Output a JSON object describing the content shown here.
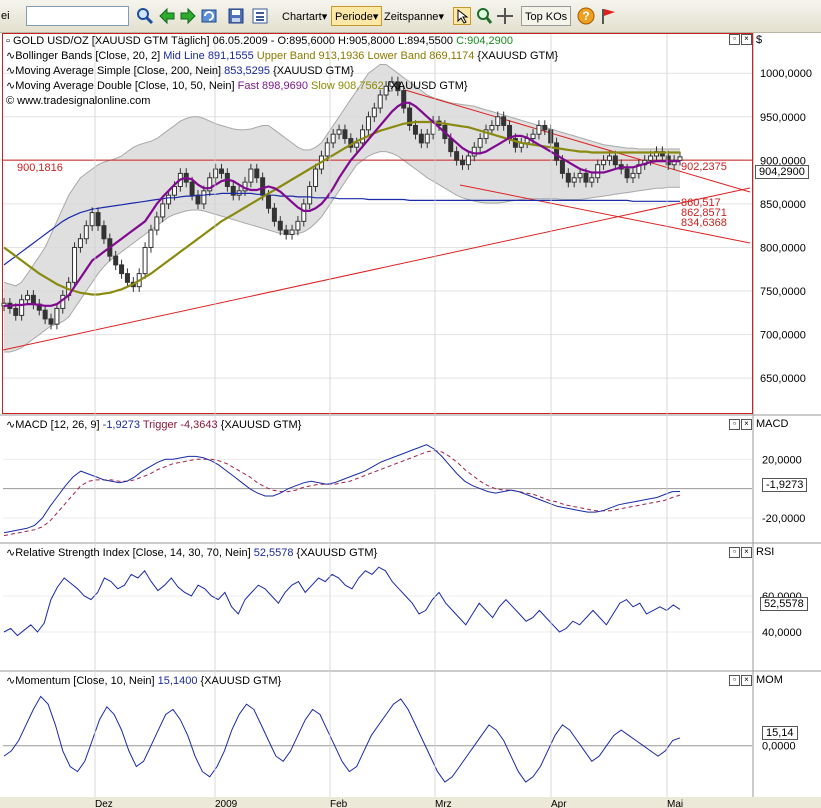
{
  "toolbar": {
    "edge_text": "ei",
    "search_value": "",
    "chartart": "Chartart",
    "periode": "Periode",
    "zeitspanne": "Zeitspanne",
    "top_kos": "Top KOs"
  },
  "main": {
    "currency_label": "$",
    "legend": {
      "title_line": "GOLD USD/OZ [XAUUSD GTM  Täglich] 06.05.2009 - O:895,6000 H:905,8000 L:894,5500",
      "close_value": "C:904,2900",
      "bb_label": "Bollinger Bands [Close, 20, 2]",
      "bb_mid": "Mid Line 891,1555",
      "bb_upper": "Upper Band 913,1936",
      "bb_lower": "Lower Band 869,1174",
      "bb_src": "{XAUUSD GTM}",
      "sma_label": "Moving Average Simple [Close, 200, Nein]",
      "sma_value": "853,5295",
      "sma_src": "{XAUUSD GTM}",
      "mad_label": "Moving Average Double [Close, 10, 50, Nein]",
      "mad_fast": "Fast 898,9690",
      "mad_slow": "Slow 908,7562",
      "mad_src": "{XAUUSD GTM}",
      "copyright": "© www.tradesignalonline.com"
    },
    "hline_label": "900,1816",
    "price_tag": "904,2900",
    "annotations": [
      "902,2375",
      "860,517",
      "862,8571",
      "834,6368"
    ]
  },
  "macd": {
    "axis_title": "MACD",
    "legend_label": "MACD [12, 26, 9]",
    "value": "-1,9273",
    "trigger": "Trigger -4,3643",
    "src": "{XAUUSD GTM}",
    "tag": "-1,9273"
  },
  "rsi": {
    "axis_title": "RSI",
    "legend_label": "Relative Strength Index [Close, 14, 30, 70, Nein]",
    "value": "52,5578",
    "src": "{XAUUSD GTM}",
    "tag": "52,5578"
  },
  "mom": {
    "axis_title": "MOM",
    "legend_label": "Momentum [Close, 10, Nein]",
    "value": "15,1400",
    "src": "{XAUUSD GTM}",
    "tag": "15,14"
  },
  "chart_data": [
    {
      "type": "line",
      "panel": "price",
      "y_ticks": [
        1000,
        950,
        900,
        850,
        800,
        750,
        700,
        650
      ],
      "y_tick_labels": [
        "1000,0000",
        "950,0000",
        "900,0000",
        "850,0000",
        "800,0000",
        "750,0000",
        "700,0000",
        "650,0000"
      ],
      "ylim": [
        610,
        1045
      ],
      "x_ticks": [
        "Dez",
        "2009",
        "Feb",
        "Mrz",
        "Apr",
        "Mai"
      ],
      "close": [
        736,
        730,
        722,
        740,
        745,
        735,
        728,
        718,
        712,
        730,
        745,
        760,
        800,
        810,
        825,
        840,
        825,
        810,
        790,
        780,
        770,
        760,
        755,
        770,
        800,
        820,
        835,
        850,
        860,
        870,
        885,
        875,
        860,
        850,
        865,
        880,
        890,
        885,
        870,
        860,
        865,
        875,
        890,
        880,
        860,
        845,
        830,
        820,
        815,
        820,
        830,
        850,
        870,
        890,
        905,
        920,
        930,
        935,
        925,
        915,
        920,
        935,
        950,
        960,
        975,
        985,
        990,
        980,
        960,
        940,
        930,
        920,
        930,
        945,
        940,
        925,
        910,
        900,
        895,
        905,
        915,
        925,
        935,
        940,
        950,
        940,
        925,
        915,
        920,
        925,
        930,
        940,
        935,
        920,
        900,
        885,
        875,
        880,
        885,
        875,
        880,
        895,
        900,
        905,
        895,
        890,
        880,
        885,
        895,
        900,
        905,
        910,
        905,
        895,
        900,
        904
      ],
      "sma200": [
        780,
        785,
        790,
        795,
        800,
        805,
        810,
        815,
        820,
        825,
        830,
        834,
        837,
        840,
        842,
        844,
        845,
        846,
        847,
        848,
        849,
        850,
        851,
        852,
        853,
        854,
        855,
        856,
        857,
        857,
        858,
        859,
        859,
        860,
        860,
        861,
        861,
        862,
        862,
        862,
        862,
        862,
        862,
        861,
        861,
        860,
        860,
        859,
        859,
        859,
        858,
        858,
        858,
        857,
        857,
        857,
        857,
        856,
        856,
        856,
        856,
        856,
        855,
        855,
        855,
        855,
        855,
        855,
        855,
        854,
        854,
        854,
        854,
        854,
        854,
        854,
        854,
        854,
        854,
        854,
        854,
        854,
        854,
        854,
        854,
        854,
        854,
        854,
        854,
        854,
        854,
        854,
        854,
        854,
        854,
        854,
        854,
        854,
        854,
        854,
        854,
        854,
        854,
        854,
        854,
        854,
        854,
        853,
        853,
        853,
        853,
        853,
        853,
        853,
        853,
        853
      ],
      "fast_ma": [
        733,
        733,
        734,
        734,
        735,
        735,
        734,
        733,
        733,
        735,
        740,
        745,
        755,
        765,
        775,
        785,
        790,
        795,
        800,
        805,
        810,
        815,
        820,
        825,
        830,
        840,
        850,
        858,
        865,
        872,
        878,
        880,
        878,
        872,
        868,
        868,
        872,
        876,
        878,
        876,
        872,
        868,
        866,
        866,
        868,
        870,
        868,
        864,
        858,
        852,
        846,
        842,
        842,
        845,
        850,
        858,
        868,
        880,
        890,
        900,
        908,
        916,
        924,
        932,
        940,
        948,
        956,
        962,
        966,
        966,
        962,
        956,
        950,
        944,
        938,
        932,
        926,
        920,
        914,
        910,
        908,
        908,
        910,
        914,
        918,
        922,
        926,
        928,
        928,
        926,
        922,
        918,
        914,
        910,
        906,
        902,
        898,
        894,
        890,
        888,
        886,
        886,
        886,
        888,
        890,
        892,
        892,
        892,
        894,
        896,
        898,
        899,
        899,
        899,
        899,
        899
      ],
      "slow_ma": [
        800,
        795,
        790,
        785,
        780,
        775,
        770,
        766,
        762,
        758,
        755,
        752,
        750,
        748,
        747,
        746,
        746,
        747,
        748,
        750,
        752,
        755,
        758,
        762,
        766,
        770,
        775,
        780,
        785,
        790,
        795,
        800,
        805,
        810,
        815,
        820,
        825,
        830,
        834,
        838,
        842,
        846,
        850,
        854,
        858,
        862,
        866,
        870,
        874,
        878,
        882,
        886,
        890,
        894,
        898,
        902,
        906,
        910,
        914,
        918,
        922,
        925,
        928,
        931,
        934,
        936,
        938,
        940,
        942,
        943,
        944,
        944,
        944,
        944,
        943,
        942,
        941,
        940,
        939,
        938,
        936,
        934,
        932,
        930,
        928,
        926,
        924,
        922,
        920,
        919,
        918,
        917,
        916,
        915,
        914,
        913,
        912,
        911,
        910,
        910,
        909,
        909,
        909,
        909,
        909,
        909,
        909,
        909,
        909,
        909,
        909,
        909,
        909,
        909,
        909,
        909
      ],
      "bb_upper": [
        760,
        758,
        756,
        760,
        770,
        780,
        790,
        800,
        815,
        830,
        845,
        860,
        870,
        880,
        885,
        890,
        895,
        898,
        900,
        902,
        905,
        910,
        915,
        918,
        920,
        922,
        925,
        930,
        935,
        940,
        945,
        948,
        950,
        950,
        948,
        945,
        942,
        940,
        938,
        936,
        935,
        935,
        936,
        938,
        940,
        940,
        935,
        930,
        925,
        920,
        915,
        912,
        912,
        915,
        920,
        930,
        940,
        950,
        960,
        970,
        980,
        990,
        1000,
        1005,
        1010,
        1010,
        1005,
        1000,
        995,
        990,
        985,
        980,
        975,
        972,
        970,
        968,
        966,
        965,
        964,
        963,
        962,
        960,
        958,
        956,
        954,
        952,
        950,
        948,
        946,
        944,
        942,
        940,
        938,
        936,
        934,
        932,
        930,
        928,
        926,
        924,
        922,
        920,
        918,
        917,
        916,
        915,
        914,
        914,
        913,
        913,
        913,
        913,
        913,
        913,
        913,
        913
      ],
      "bb_lower": [
        680,
        680,
        682,
        685,
        690,
        695,
        700,
        705,
        710,
        712,
        715,
        720,
        730,
        740,
        750,
        760,
        770,
        778,
        785,
        790,
        795,
        800,
        805,
        810,
        815,
        820,
        825,
        830,
        835,
        838,
        840,
        842,
        843,
        843,
        842,
        840,
        838,
        836,
        834,
        832,
        830,
        828,
        826,
        824,
        822,
        820,
        818,
        816,
        815,
        815,
        816,
        818,
        822,
        828,
        835,
        845,
        855,
        865,
        875,
        885,
        895,
        900,
        905,
        908,
        910,
        910,
        908,
        905,
        900,
        895,
        890,
        885,
        880,
        876,
        872,
        868,
        864,
        860,
        857,
        855,
        853,
        852,
        851,
        851,
        851,
        852,
        853,
        854,
        855,
        856,
        856,
        856,
        856,
        856,
        856,
        855,
        855,
        855,
        855,
        856,
        857,
        858,
        859,
        860,
        861,
        862,
        863,
        864,
        865,
        866,
        867,
        868,
        868,
        869,
        869,
        869
      ],
      "hline": 900.1816
    },
    {
      "type": "line",
      "panel": "macd",
      "y_tick_labels": [
        "20,0000",
        "-20,0000"
      ],
      "ylim": [
        -35,
        40
      ],
      "macd": [
        -30,
        -29,
        -28,
        -27,
        -25,
        -20,
        -12,
        -5,
        2,
        8,
        12,
        10,
        8,
        6,
        5,
        4,
        5,
        8,
        12,
        15,
        18,
        20,
        20,
        21,
        22,
        22,
        21,
        19,
        16,
        12,
        8,
        4,
        0,
        -3,
        -5,
        -5,
        -3,
        0,
        2,
        4,
        5,
        4,
        3,
        4,
        6,
        8,
        10,
        12,
        15,
        18,
        20,
        22,
        24,
        26,
        28,
        30,
        27,
        22,
        16,
        10,
        5,
        2,
        0,
        -2,
        -3,
        -2,
        -1,
        -2,
        -4,
        -6,
        -8,
        -10,
        -12,
        -13,
        -14,
        -15,
        -16,
        -16,
        -15,
        -13,
        -11,
        -10,
        -9,
        -8,
        -7,
        -6,
        -4,
        -2,
        -1.9273
      ],
      "trigger": [
        -32,
        -31,
        -30,
        -29,
        -28,
        -26,
        -22,
        -16,
        -10,
        -4,
        2,
        5,
        6,
        6,
        6,
        5,
        5,
        6,
        8,
        10,
        13,
        15,
        17,
        18,
        19,
        20,
        20,
        20,
        19,
        17,
        14,
        11,
        8,
        4,
        1,
        -1,
        -2,
        -2,
        -1,
        1,
        2,
        3,
        3,
        3,
        4,
        5,
        7,
        9,
        11,
        13,
        15,
        17,
        19,
        21,
        23,
        25,
        26,
        25,
        22,
        18,
        13,
        9,
        5,
        2,
        0,
        -1,
        -1,
        -2,
        -3,
        -4,
        -6,
        -8,
        -9,
        -11,
        -12,
        -13,
        -14,
        -15,
        -15,
        -15,
        -14,
        -13,
        -12,
        -11,
        -10,
        -9,
        -8,
        -6,
        -4.3643
      ]
    },
    {
      "type": "line",
      "panel": "rsi",
      "y_tick_labels": [
        "60,0000",
        "40,0000"
      ],
      "ylim": [
        20,
        80
      ],
      "rsi": [
        40,
        42,
        38,
        41,
        44,
        40,
        45,
        58,
        65,
        70,
        67,
        64,
        60,
        58,
        62,
        70,
        68,
        64,
        66,
        72,
        70,
        74,
        68,
        63,
        66,
        70,
        65,
        62,
        60,
        66,
        64,
        60,
        58,
        62,
        54,
        50,
        58,
        62,
        66,
        64,
        60,
        56,
        62,
        66,
        68,
        62,
        66,
        70,
        68,
        72,
        70,
        66,
        64,
        70,
        74,
        72,
        76,
        74,
        68,
        64,
        60,
        56,
        50,
        52,
        58,
        62,
        56,
        52,
        48,
        44,
        50,
        56,
        52,
        48,
        54,
        58,
        54,
        50,
        46,
        48,
        52,
        48,
        44,
        40,
        42,
        46,
        44,
        48,
        52,
        48,
        44,
        50,
        56,
        58,
        54,
        56,
        50,
        52,
        54,
        52,
        55,
        52.5578
      ],
      "levels": [
        30,
        70
      ]
    },
    {
      "type": "line",
      "panel": "momentum",
      "y_tick_labels": [
        "0,0000"
      ],
      "ylim": [
        -95,
        115
      ],
      "momentum": [
        -20,
        -10,
        10,
        40,
        70,
        95,
        80,
        40,
        -10,
        -40,
        -50,
        -30,
        10,
        50,
        75,
        60,
        30,
        -10,
        -40,
        -30,
        0,
        30,
        60,
        70,
        50,
        20,
        -20,
        -50,
        -60,
        -40,
        -10,
        30,
        60,
        80,
        70,
        40,
        10,
        -20,
        -30,
        -10,
        20,
        50,
        70,
        60,
        30,
        0,
        -30,
        -50,
        -40,
        -10,
        20,
        40,
        60,
        80,
        90,
        70,
        40,
        10,
        -20,
        -50,
        -70,
        -60,
        -40,
        -20,
        0,
        20,
        40,
        30,
        10,
        -20,
        -50,
        -70,
        -60,
        -40,
        -10,
        20,
        40,
        30,
        10,
        -10,
        -30,
        -20,
        0,
        20,
        30,
        20,
        10,
        0,
        -10,
        -20,
        -10,
        10,
        15.14
      ]
    }
  ]
}
